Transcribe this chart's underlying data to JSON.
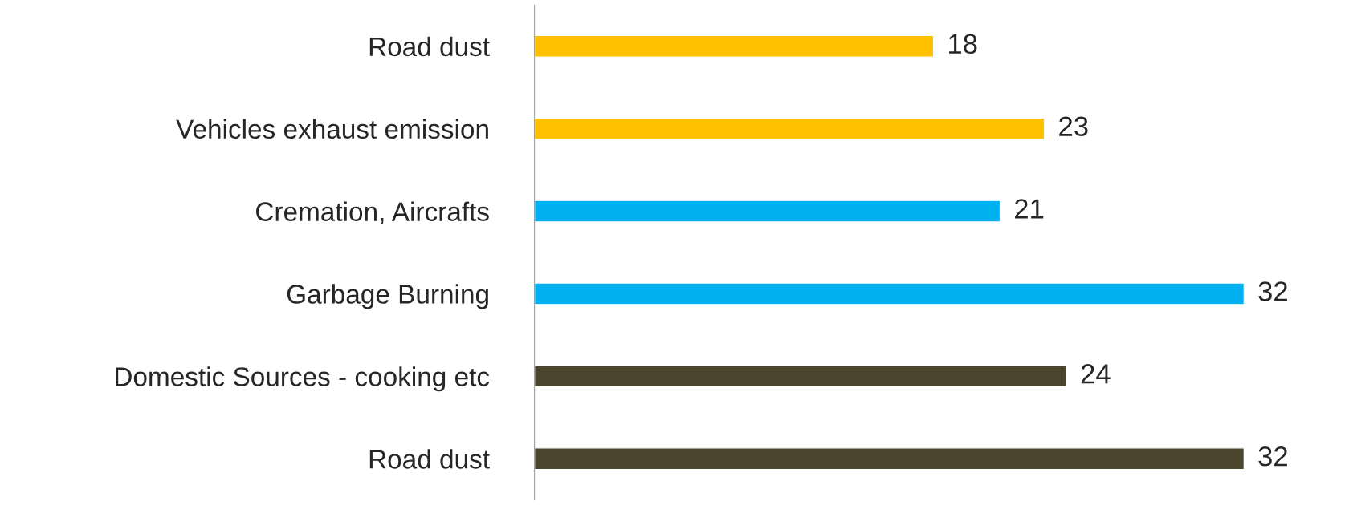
{
  "chart_data": {
    "type": "bar",
    "orientation": "horizontal",
    "categories": [
      "Road dust",
      "Vehicles exhaust emission",
      "Cremation, Aircrafts",
      "Garbage Burning",
      "Domestic Sources - cooking etc",
      "Road dust"
    ],
    "values": [
      18,
      23,
      21,
      32,
      24,
      32
    ],
    "colors": [
      "#ffc000",
      "#ffc000",
      "#00b0f0",
      "#00b0f0",
      "#4b452d",
      "#4b452d"
    ],
    "data_labels": true,
    "grid": false,
    "legend": false
  }
}
